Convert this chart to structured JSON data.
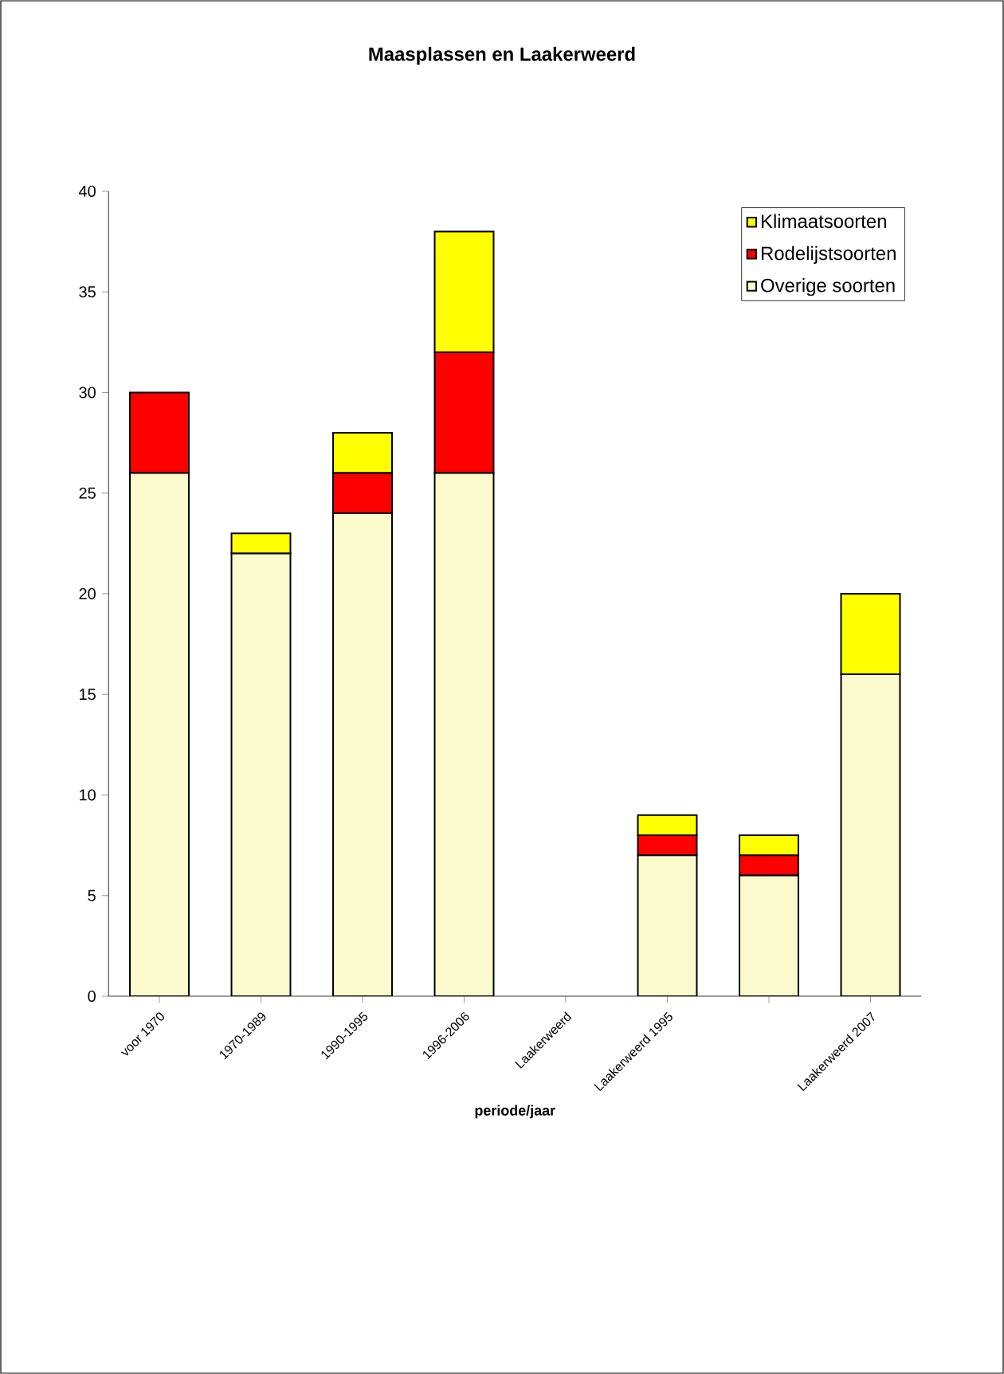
{
  "chart_data": {
    "type": "bar",
    "stacked": true,
    "title": "Maasplassen en Laakerweerd",
    "xlabel": "periode/jaar",
    "categories": [
      "voor 1970",
      "1970-1989",
      "1990-1995",
      "1996-2006",
      "Laakerweerd",
      "Laakerweerd 1995",
      null,
      "Laakerweerd 2007"
    ],
    "series": [
      {
        "name": "Overige soorten",
        "color": "#fafacd",
        "values": [
          26,
          22,
          24,
          26,
          null,
          7,
          6,
          16
        ]
      },
      {
        "name": "Rodelijstsoorten",
        "color": "#ff0000",
        "values": [
          4,
          0,
          2,
          6,
          null,
          1,
          1,
          0
        ]
      },
      {
        "name": "Klimaatsoorten",
        "color": "#ffff00",
        "values": [
          0,
          1,
          2,
          6,
          null,
          1,
          1,
          4
        ]
      }
    ],
    "ylim": [
      0,
      40
    ],
    "yticks": [
      0,
      5,
      10,
      15,
      20,
      25,
      30,
      35,
      40
    ],
    "legend": "top right",
    "grid": false
  }
}
